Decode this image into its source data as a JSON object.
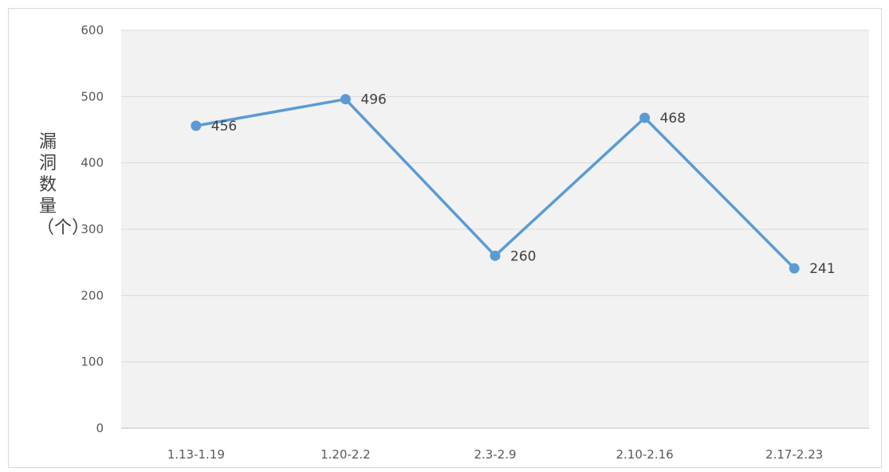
{
  "chart_data": {
    "type": "line",
    "title": "",
    "xlabel": "",
    "ylabel": "漏洞数量（个）",
    "categories": [
      "1.13-1.19",
      "1.20-2.2",
      "2.3-2.9",
      "2.10-2.16",
      "2.17-2.23"
    ],
    "series": [
      {
        "values": [
          456,
          496,
          260,
          468,
          241
        ],
        "color": "#5b9bd5"
      }
    ],
    "data_labels": [
      "456",
      "496",
      "260",
      "468",
      "241"
    ],
    "yticks": [
      "0",
      "100",
      "200",
      "300",
      "400",
      "500",
      "600"
    ],
    "ylim": [
      0,
      600
    ],
    "grid": true,
    "legend": "none",
    "plot_background": "#f2f2f2"
  }
}
